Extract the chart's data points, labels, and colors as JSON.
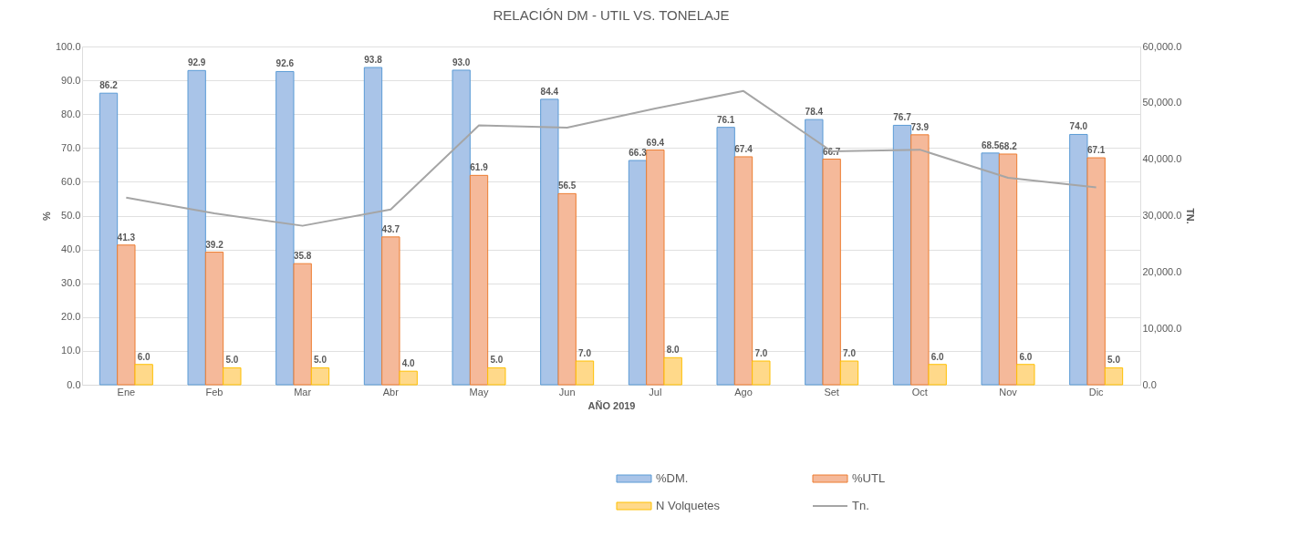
{
  "chart_data": {
    "type": "bar",
    "title": "RELACIÓN  DM - UTIL   VS.  TONELAJE",
    "xlabel": "AÑO 2019",
    "ylabel": "%",
    "y2label": "TN.",
    "categories": [
      "Ene",
      "Feb",
      "Mar",
      "Abr",
      "May",
      "Jun",
      "Jul",
      "Ago",
      "Set",
      "Oct",
      "Nov",
      "Dic"
    ],
    "series": [
      {
        "name": "%DM.",
        "color": "#a9c4e8",
        "values": [
          86.2,
          92.9,
          92.6,
          93.8,
          93.0,
          84.4,
          66.3,
          76.1,
          78.4,
          76.7,
          68.5,
          74.0
        ],
        "value_labels": [
          "86.2",
          "92.9",
          "92.6",
          "93.8",
          "93.0",
          "84.4",
          "66.3",
          "76.1",
          "78.4",
          "76.7",
          "68.5",
          "74.0"
        ]
      },
      {
        "name": "%UTL",
        "color": "#f5b99a",
        "values": [
          41.3,
          39.2,
          35.8,
          43.7,
          61.9,
          56.5,
          69.4,
          67.4,
          66.7,
          73.9,
          68.2,
          67.1
        ],
        "value_labels": [
          "41.3",
          "39.2",
          "35.8",
          "43.7",
          "61.9",
          "56.5",
          "69.4",
          "67.4",
          "66.7",
          "73.9",
          "68.2",
          "67.1"
        ]
      },
      {
        "name": "N Volquetes",
        "color": "#ffd98a",
        "values": [
          6.0,
          5.0,
          5.0,
          4.0,
          5.0,
          7.0,
          8.0,
          7.0,
          7.0,
          6.0,
          6.0,
          5.0
        ],
        "value_labels": [
          "6.0",
          "5.0",
          "5.0",
          "4.0",
          "5.0",
          "7.0",
          "8.0",
          "7.0",
          "7.0",
          "6.0",
          "6.0",
          "5.0"
        ]
      },
      {
        "name": "Tn.",
        "type": "line",
        "axis": "y2",
        "color": "#a5a5a5",
        "values": [
          33200,
          30400,
          28200,
          31100,
          46000,
          45600,
          49000,
          52100,
          41400,
          41700,
          36700,
          35000
        ]
      }
    ],
    "ylim": [
      0,
      100
    ],
    "yticks": [
      {
        "value": 0,
        "label": "0.0"
      },
      {
        "value": 10,
        "label": "10.0"
      },
      {
        "value": 20,
        "label": "20.0"
      },
      {
        "value": 30,
        "label": "30.0"
      },
      {
        "value": 40,
        "label": "40.0"
      },
      {
        "value": 50,
        "label": "50.0"
      },
      {
        "value": 60,
        "label": "60.0"
      },
      {
        "value": 70,
        "label": "70.0"
      },
      {
        "value": 80,
        "label": "80.0"
      },
      {
        "value": 90,
        "label": "90.0"
      },
      {
        "value": 100,
        "label": "100.0"
      }
    ],
    "y2lim": [
      0,
      60000
    ],
    "y2ticks": [
      {
        "value": 0,
        "label": "0.0"
      },
      {
        "value": 10000,
        "label": "10,000.0"
      },
      {
        "value": 20000,
        "label": "20,000.0"
      },
      {
        "value": 30000,
        "label": "30,000.0"
      },
      {
        "value": 40000,
        "label": "40,000.0"
      },
      {
        "value": 50000,
        "label": "50,000.0"
      },
      {
        "value": 60000,
        "label": "60,000.0"
      }
    ],
    "grid": "y",
    "legend": "bottom right"
  }
}
